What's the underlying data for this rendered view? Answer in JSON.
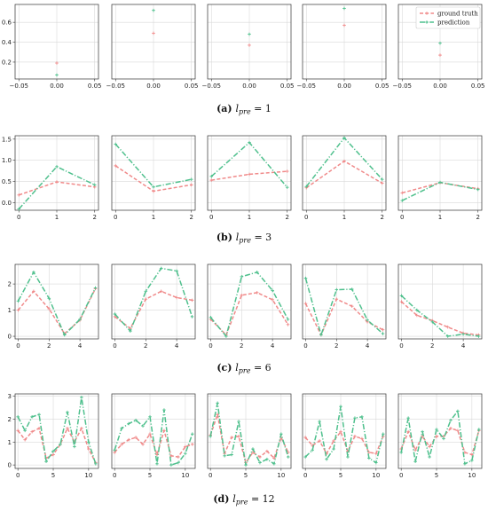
{
  "colors": {
    "ground_truth": "#f08a8a",
    "prediction": "#4fc08d",
    "grid": "#d9d9d9",
    "axis": "#333333"
  },
  "legend": {
    "placement": "top-right of first row, last panel",
    "items": [
      "ground truth",
      "prediction"
    ]
  },
  "captions": [
    {
      "label": "(a)",
      "text": "l",
      "sub": "pre",
      "tail": " = 1"
    },
    {
      "label": "(b)",
      "text": "l",
      "sub": "pre",
      "tail": " = 3"
    },
    {
      "label": "(c)",
      "text": "l",
      "sub": "pre",
      "tail": " = 6"
    },
    {
      "label": "(d)",
      "text": "l",
      "sub": "pre",
      "tail": " = 12"
    }
  ],
  "chart_data": [
    {
      "type": "line",
      "row": "a",
      "shared_y": true,
      "ylim": [
        0.03,
        0.78
      ],
      "yticks": [
        0.2,
        0.4,
        0.6
      ],
      "ytick_labels": [
        "0.2",
        "0.4",
        "0.6"
      ],
      "xlim": [
        -0.055,
        0.055
      ],
      "xticks": [
        -0.05,
        0.0,
        0.05
      ],
      "xtick_labels": [
        "−0.05",
        "0.00",
        "0.05"
      ],
      "grid": true,
      "panels": [
        {
          "x": [
            0
          ],
          "ground_truth": [
            0.19
          ],
          "prediction": [
            0.07
          ]
        },
        {
          "x": [
            0
          ],
          "ground_truth": [
            0.49
          ],
          "prediction": [
            0.72
          ]
        },
        {
          "x": [
            0
          ],
          "ground_truth": [
            0.37
          ],
          "prediction": [
            0.48
          ]
        },
        {
          "x": [
            0
          ],
          "ground_truth": [
            0.57
          ],
          "prediction": [
            0.74
          ]
        },
        {
          "x": [
            0
          ],
          "ground_truth": [
            0.27
          ],
          "prediction": [
            0.39
          ],
          "legend": true
        }
      ]
    },
    {
      "type": "line",
      "row": "b",
      "shared_y": true,
      "ylim": [
        -0.18,
        1.58
      ],
      "yticks": [
        0.0,
        0.5,
        1.0,
        1.5
      ],
      "ytick_labels": [
        "0.0",
        "0.5",
        "1.0",
        "1.5"
      ],
      "xlim": [
        -0.1,
        2.1
      ],
      "xticks": [
        0,
        1,
        2
      ],
      "xtick_labels": [
        "0",
        "1",
        "2"
      ],
      "grid": true,
      "panels": [
        {
          "x": [
            0,
            1,
            2
          ],
          "ground_truth": [
            0.18,
            0.49,
            0.37
          ],
          "prediction": [
            -0.15,
            0.85,
            0.42
          ]
        },
        {
          "x": [
            0,
            1,
            2
          ],
          "ground_truth": [
            0.87,
            0.27,
            0.42
          ],
          "prediction": [
            1.38,
            0.37,
            0.55
          ]
        },
        {
          "x": [
            0,
            1,
            2
          ],
          "ground_truth": [
            0.53,
            0.67,
            0.74
          ],
          "prediction": [
            0.62,
            1.42,
            0.36
          ]
        },
        {
          "x": [
            0,
            1,
            2
          ],
          "ground_truth": [
            0.35,
            0.98,
            0.46
          ],
          "prediction": [
            0.38,
            1.53,
            0.55
          ]
        },
        {
          "x": [
            0,
            1,
            2
          ],
          "ground_truth": [
            0.23,
            0.47,
            0.33
          ],
          "prediction": [
            0.05,
            0.48,
            0.31
          ]
        }
      ]
    },
    {
      "type": "line",
      "row": "c",
      "shared_y": true,
      "ylim": [
        -0.1,
        2.75
      ],
      "yticks": [
        0,
        1,
        2
      ],
      "ytick_labels": [
        "0",
        "1",
        "2"
      ],
      "xlim": [
        -0.2,
        5.2
      ],
      "xticks": [
        0,
        2,
        4
      ],
      "xtick_labels": [
        "0",
        "2",
        "4"
      ],
      "grid": true,
      "panels": [
        {
          "x": [
            0,
            1,
            2,
            3,
            4,
            5
          ],
          "ground_truth": [
            1.0,
            1.72,
            1.05,
            0.1,
            0.62,
            1.82
          ],
          "prediction": [
            1.35,
            2.45,
            1.45,
            0.05,
            0.65,
            1.85
          ]
        },
        {
          "x": [
            0,
            1,
            2,
            3,
            4,
            5
          ],
          "ground_truth": [
            0.75,
            0.3,
            1.42,
            1.72,
            1.48,
            1.38
          ],
          "prediction": [
            0.85,
            0.2,
            1.72,
            2.6,
            2.5,
            0.75
          ]
        },
        {
          "x": [
            0,
            1,
            2,
            3,
            4,
            5
          ],
          "ground_truth": [
            0.65,
            0.05,
            1.57,
            1.67,
            1.4,
            0.45
          ],
          "prediction": [
            0.72,
            0.0,
            2.28,
            2.45,
            1.75,
            0.65
          ]
        },
        {
          "x": [
            0,
            1,
            2,
            3,
            4,
            5
          ],
          "ground_truth": [
            1.25,
            0.05,
            1.42,
            1.15,
            0.55,
            0.25
          ],
          "prediction": [
            2.22,
            0.05,
            1.78,
            1.8,
            0.62,
            0.1
          ]
        },
        {
          "x": [
            0,
            1,
            2,
            3,
            4,
            5
          ],
          "ground_truth": [
            1.32,
            0.8,
            0.6,
            0.35,
            0.12,
            0.05
          ],
          "prediction": [
            1.55,
            1.0,
            0.55,
            0.0,
            0.08,
            0.0
          ]
        }
      ]
    },
    {
      "type": "line",
      "row": "d",
      "shared_y": true,
      "ylim": [
        -0.15,
        3.1
      ],
      "yticks": [
        0,
        1,
        2,
        3
      ],
      "ytick_labels": [
        "0",
        "1",
        "2",
        "3"
      ],
      "xlim": [
        -0.4,
        11.4
      ],
      "xticks": [
        0,
        5,
        10
      ],
      "xtick_labels": [
        "0",
        "5",
        "10"
      ],
      "grid": true,
      "panels": [
        {
          "x": [
            0,
            1,
            2,
            3,
            4,
            5,
            6,
            7,
            8,
            9,
            10,
            11
          ],
          "ground_truth": [
            1.5,
            1.1,
            1.45,
            1.6,
            0.3,
            0.45,
            0.9,
            1.6,
            1.0,
            1.6,
            0.7,
            0.1
          ],
          "prediction": [
            2.1,
            1.5,
            2.1,
            2.2,
            0.15,
            0.6,
            0.9,
            2.3,
            0.8,
            2.95,
            1.0,
            0.05
          ]
        },
        {
          "x": [
            0,
            1,
            2,
            3,
            4,
            5,
            6,
            7,
            8,
            9,
            10,
            11
          ],
          "ground_truth": [
            0.55,
            0.9,
            1.1,
            1.2,
            0.9,
            1.35,
            0.45,
            1.5,
            0.4,
            0.35,
            0.8,
            0.9
          ],
          "prediction": [
            0.65,
            1.6,
            1.8,
            1.95,
            1.7,
            2.1,
            0.05,
            2.4,
            0.0,
            0.1,
            0.5,
            1.35
          ]
        },
        {
          "x": [
            0,
            1,
            2,
            3,
            4,
            5,
            6,
            7,
            8,
            9,
            10,
            11
          ],
          "ground_truth": [
            1.3,
            2.2,
            0.5,
            1.2,
            1.25,
            0.1,
            0.55,
            0.35,
            0.6,
            0.3,
            1.2,
            0.55
          ],
          "prediction": [
            1.25,
            2.7,
            0.4,
            0.45,
            1.9,
            0.0,
            0.7,
            0.1,
            0.25,
            0.05,
            1.35,
            0.35
          ]
        },
        {
          "x": [
            0,
            1,
            2,
            3,
            4,
            5,
            6,
            7,
            8,
            9,
            10,
            11
          ],
          "ground_truth": [
            1.2,
            0.85,
            1.05,
            0.5,
            1.05,
            1.45,
            0.6,
            1.25,
            1.15,
            0.55,
            0.5,
            1.25
          ],
          "prediction": [
            0.35,
            0.65,
            1.9,
            0.25,
            0.7,
            2.55,
            0.35,
            2.05,
            2.1,
            0.3,
            0.1,
            1.35
          ]
        },
        {
          "x": [
            0,
            1,
            2,
            3,
            4,
            5,
            6,
            7,
            8,
            9,
            10,
            11
          ],
          "ground_truth": [
            0.7,
            1.45,
            0.65,
            1.25,
            0.8,
            1.25,
            1.25,
            1.6,
            1.5,
            0.55,
            0.45,
            1.5
          ],
          "prediction": [
            0.55,
            2.05,
            0.15,
            1.45,
            0.35,
            1.55,
            1.15,
            1.95,
            2.35,
            0.05,
            0.2,
            1.55
          ]
        }
      ]
    }
  ]
}
